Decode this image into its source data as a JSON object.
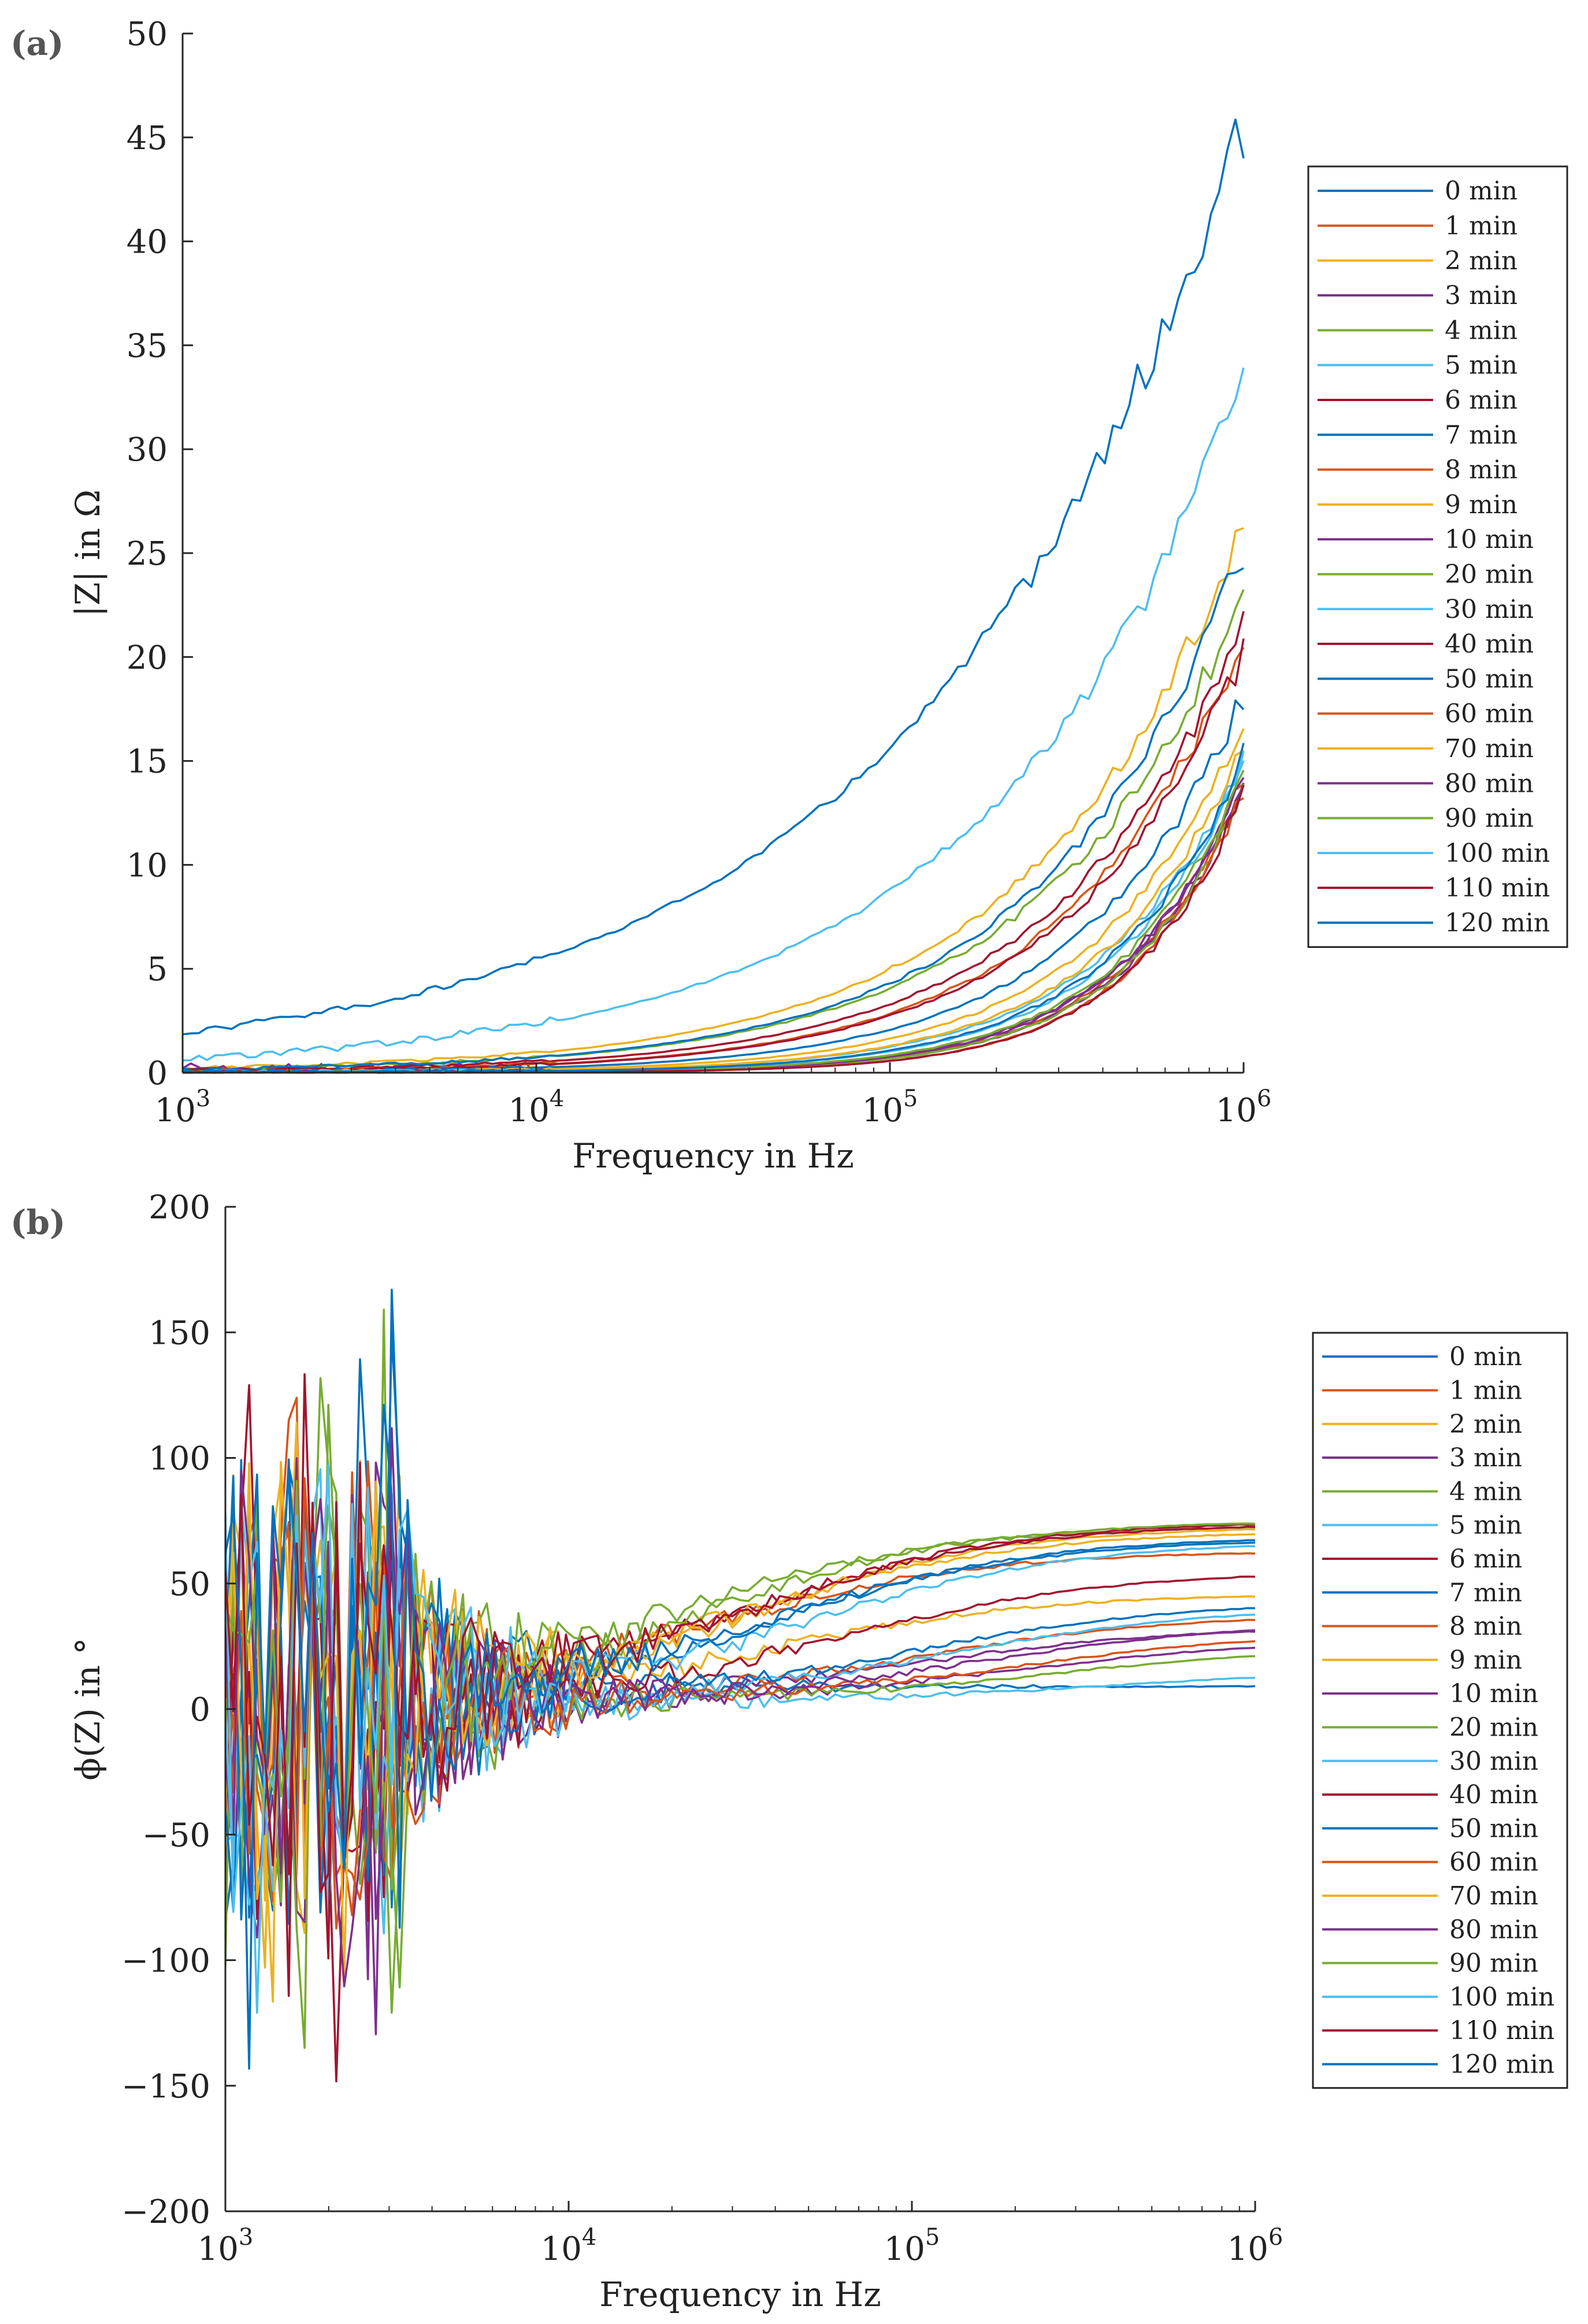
{
  "panels": [
    "(a)",
    "(b)"
  ],
  "chart_data": [
    {
      "type": "line",
      "panel_label": "(a)",
      "title": "",
      "xlabel": "Frequency in Hz",
      "ylabel": "|Z| in Ω",
      "xscale": "log",
      "xlim": [
        1000,
        1000000
      ],
      "ylim": [
        0,
        50
      ],
      "yticks": [
        0,
        5,
        10,
        15,
        20,
        25,
        30,
        35,
        40,
        45,
        50
      ],
      "xticks": [
        {
          "base": "10",
          "exp": "3"
        },
        {
          "base": "10",
          "exp": "4"
        },
        {
          "base": "10",
          "exp": "5"
        },
        {
          "base": "10",
          "exp": "6"
        }
      ],
      "legend_position": "right",
      "series": [
        {
          "name": "0 min",
          "color": "#0072BD",
          "end": 45.5,
          "k": 3.2,
          "noise": 0.3
        },
        {
          "name": "1 min",
          "color": "#D95319",
          "end": 14.2,
          "k": 9,
          "noise": 0.15
        },
        {
          "name": "2 min",
          "color": "#EDB120",
          "end": 26.5,
          "k": 5,
          "noise": 0.15
        },
        {
          "name": "3 min",
          "color": "#7E2F8E",
          "end": 13.8,
          "k": 9,
          "noise": 0.6
        },
        {
          "name": "4 min",
          "color": "#77AC30",
          "end": 23.0,
          "k": 5.2,
          "noise": 0.15
        },
        {
          "name": "5 min",
          "color": "#4DBEEE",
          "end": 33.2,
          "k": 4,
          "noise": 0.35
        },
        {
          "name": "6 min",
          "color": "#A2142F",
          "end": 21.5,
          "k": 5.6,
          "noise": 0.15
        },
        {
          "name": "7 min",
          "color": "#0072BD",
          "end": 25.2,
          "k": 5.3,
          "noise": 0.15
        },
        {
          "name": "8 min",
          "color": "#D95319",
          "end": 21.0,
          "k": 6,
          "noise": 0.15
        },
        {
          "name": "9 min",
          "color": "#EDB120",
          "end": 16.8,
          "k": 7,
          "noise": 0.15
        },
        {
          "name": "10 min",
          "color": "#7E2F8E",
          "end": 14.0,
          "k": 8.5,
          "noise": 0.15
        },
        {
          "name": "20 min",
          "color": "#77AC30",
          "end": 13.8,
          "k": 9,
          "noise": 0.15
        },
        {
          "name": "30 min",
          "color": "#4DBEEE",
          "end": 15.2,
          "k": 7.5,
          "noise": 0.15
        },
        {
          "name": "40 min",
          "color": "#A2142F",
          "end": 20.3,
          "k": 6,
          "noise": 0.15
        },
        {
          "name": "50 min",
          "color": "#0072BD",
          "end": 18.2,
          "k": 6.5,
          "noise": 0.15
        },
        {
          "name": "60 min",
          "color": "#D95319",
          "end": 13.6,
          "k": 9.5,
          "noise": 0.1
        },
        {
          "name": "70 min",
          "color": "#EDB120",
          "end": 15.8,
          "k": 7.5,
          "noise": 0.15
        },
        {
          "name": "80 min",
          "color": "#7E2F8E",
          "end": 14.3,
          "k": 8.8,
          "noise": 0.15
        },
        {
          "name": "90 min",
          "color": "#77AC30",
          "end": 14.5,
          "k": 8.5,
          "noise": 0.15
        },
        {
          "name": "100 min",
          "color": "#4DBEEE",
          "end": 14.8,
          "k": 8,
          "noise": 0.15
        },
        {
          "name": "110 min",
          "color": "#A2142F",
          "end": 13.5,
          "k": 9.5,
          "noise": 0.1
        },
        {
          "name": "120 min",
          "color": "#0072BD",
          "end": 15.3,
          "k": 8,
          "noise": 0.15
        }
      ]
    },
    {
      "type": "line",
      "panel_label": "(b)",
      "title": "",
      "xlabel": "Frequency in Hz",
      "ylabel": "ϕ(Z) in °",
      "xscale": "log",
      "xlim": [
        1000,
        1000000
      ],
      "ylim": [
        -200,
        200
      ],
      "yticks": [
        -200,
        -150,
        -100,
        -50,
        0,
        50,
        100,
        150,
        200
      ],
      "yticklabels": [
        "−200",
        "−150",
        "−100",
        "−50",
        "0",
        "50",
        "100",
        "150",
        "200"
      ],
      "xticks": [
        {
          "base": "10",
          "exp": "3"
        },
        {
          "base": "10",
          "exp": "4"
        },
        {
          "base": "10",
          "exp": "5"
        },
        {
          "base": "10",
          "exp": "6"
        }
      ],
      "legend_position": "right",
      "series": [
        {
          "name": "0 min",
          "color": "#0072BD",
          "end": 6,
          "mid": 2.5
        },
        {
          "name": "1 min",
          "color": "#D95319",
          "end": 60,
          "mid": 4.4
        },
        {
          "name": "2 min",
          "color": "#EDB120",
          "end": 43,
          "mid": 4.6
        },
        {
          "name": "3 min",
          "color": "#7E2F8E",
          "end": 30,
          "mid": 5.0
        },
        {
          "name": "4 min",
          "color": "#77AC30",
          "end": 70,
          "mid": 4.3
        },
        {
          "name": "5 min",
          "color": "#4DBEEE",
          "end": 13,
          "mid": 5.6
        },
        {
          "name": "6 min",
          "color": "#A2142F",
          "end": 72,
          "mid": 4.5
        },
        {
          "name": "7 min",
          "color": "#0072BD",
          "end": 66,
          "mid": 4.6
        },
        {
          "name": "8 min",
          "color": "#D95319",
          "end": 35,
          "mid": 5.0
        },
        {
          "name": "9 min",
          "color": "#EDB120",
          "end": 70,
          "mid": 4.5
        },
        {
          "name": "10 min",
          "color": "#7E2F8E",
          "end": 25,
          "mid": 5.3
        },
        {
          "name": "20 min",
          "color": "#77AC30",
          "end": 22,
          "mid": 5.4
        },
        {
          "name": "30 min",
          "color": "#4DBEEE",
          "end": 38,
          "mid": 5.1
        },
        {
          "name": "40 min",
          "color": "#A2142F",
          "end": 52,
          "mid": 4.8
        },
        {
          "name": "50 min",
          "color": "#0072BD",
          "end": 40,
          "mid": 5.0
        },
        {
          "name": "60 min",
          "color": "#D95319",
          "end": 28,
          "mid": 5.3
        },
        {
          "name": "70 min",
          "color": "#EDB120",
          "end": 68,
          "mid": 4.5
        },
        {
          "name": "80 min",
          "color": "#7E2F8E",
          "end": 32,
          "mid": 5.2
        },
        {
          "name": "90 min",
          "color": "#77AC30",
          "end": 72,
          "mid": 4.4
        },
        {
          "name": "100 min",
          "color": "#4DBEEE",
          "end": 64,
          "mid": 4.7
        },
        {
          "name": "110 min",
          "color": "#A2142F",
          "end": 71,
          "mid": 4.5
        },
        {
          "name": "120 min",
          "color": "#0072BD",
          "end": 65,
          "mid": 4.6
        }
      ]
    }
  ]
}
